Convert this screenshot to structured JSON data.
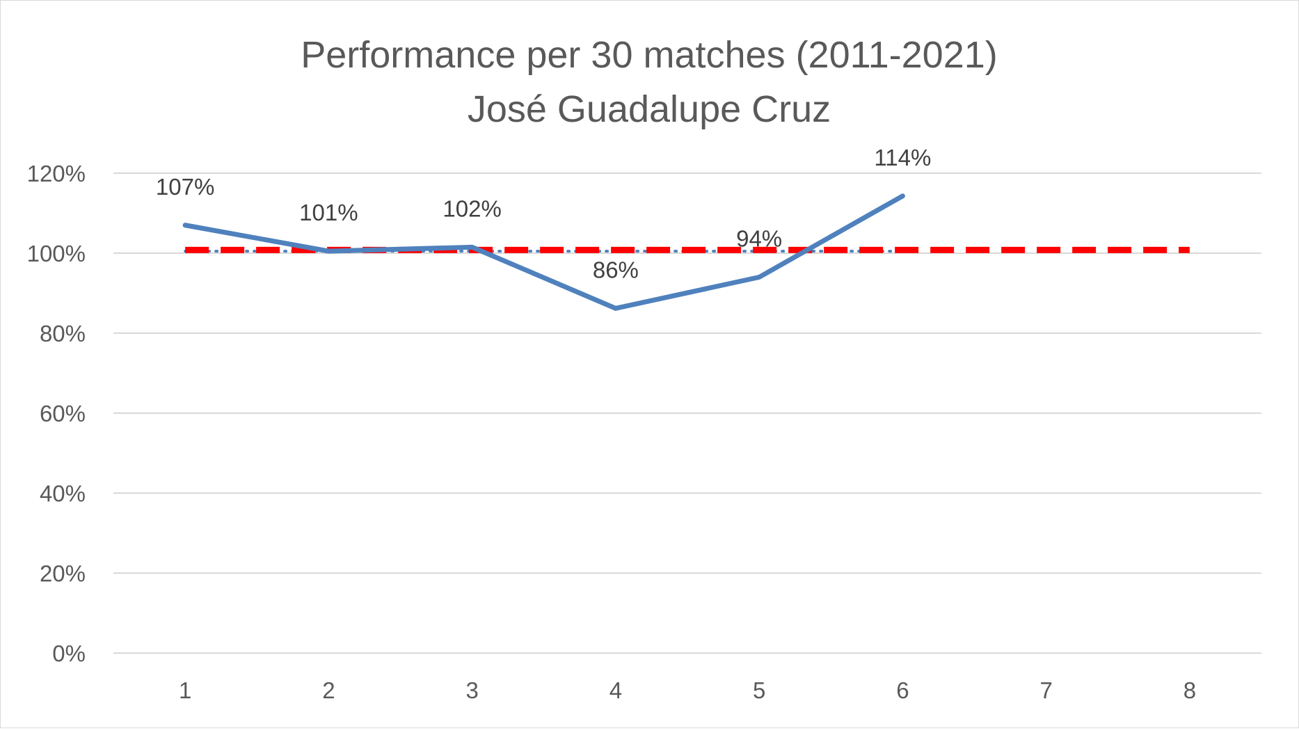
{
  "chart_data": {
    "type": "line",
    "title_lines": [
      "Performance per 30 matches (2011-2021)",
      "José Guadalupe Cruz"
    ],
    "xlabel": "",
    "ylabel": "",
    "x": [
      1,
      2,
      3,
      4,
      5,
      6,
      7,
      8
    ],
    "ylim": [
      0,
      1.2
    ],
    "yticks": [
      0,
      0.2,
      0.4,
      0.6,
      0.8,
      1.0,
      1.2
    ],
    "ytick_labels": [
      "0%",
      "20%",
      "40%",
      "60%",
      "80%",
      "100%",
      "120%"
    ],
    "grid": true,
    "legend": "none",
    "series": [
      {
        "style": "solid",
        "color": "#4f81bd",
        "x": [
          1,
          2,
          3,
          4,
          5,
          6
        ],
        "values": [
          1.07,
          1.005,
          1.015,
          0.862,
          0.94,
          1.143
        ],
        "data_labels": [
          "107%",
          "101%",
          "102%",
          "86%",
          "94%",
          "114%"
        ]
      },
      {
        "style": "dotted",
        "color": "#4f81bd",
        "x": [
          1,
          2,
          3,
          4,
          5,
          6
        ],
        "values": [
          1.005,
          1.005,
          1.005,
          1.005,
          1.005,
          1.005
        ]
      },
      {
        "style": "dashed",
        "color": "#ff0000",
        "x": [
          1,
          2,
          3,
          4,
          5,
          6,
          7,
          8
        ],
        "values": [
          1.008,
          1.008,
          1.008,
          1.008,
          1.008,
          1.008,
          1.008,
          1.008
        ]
      }
    ]
  }
}
